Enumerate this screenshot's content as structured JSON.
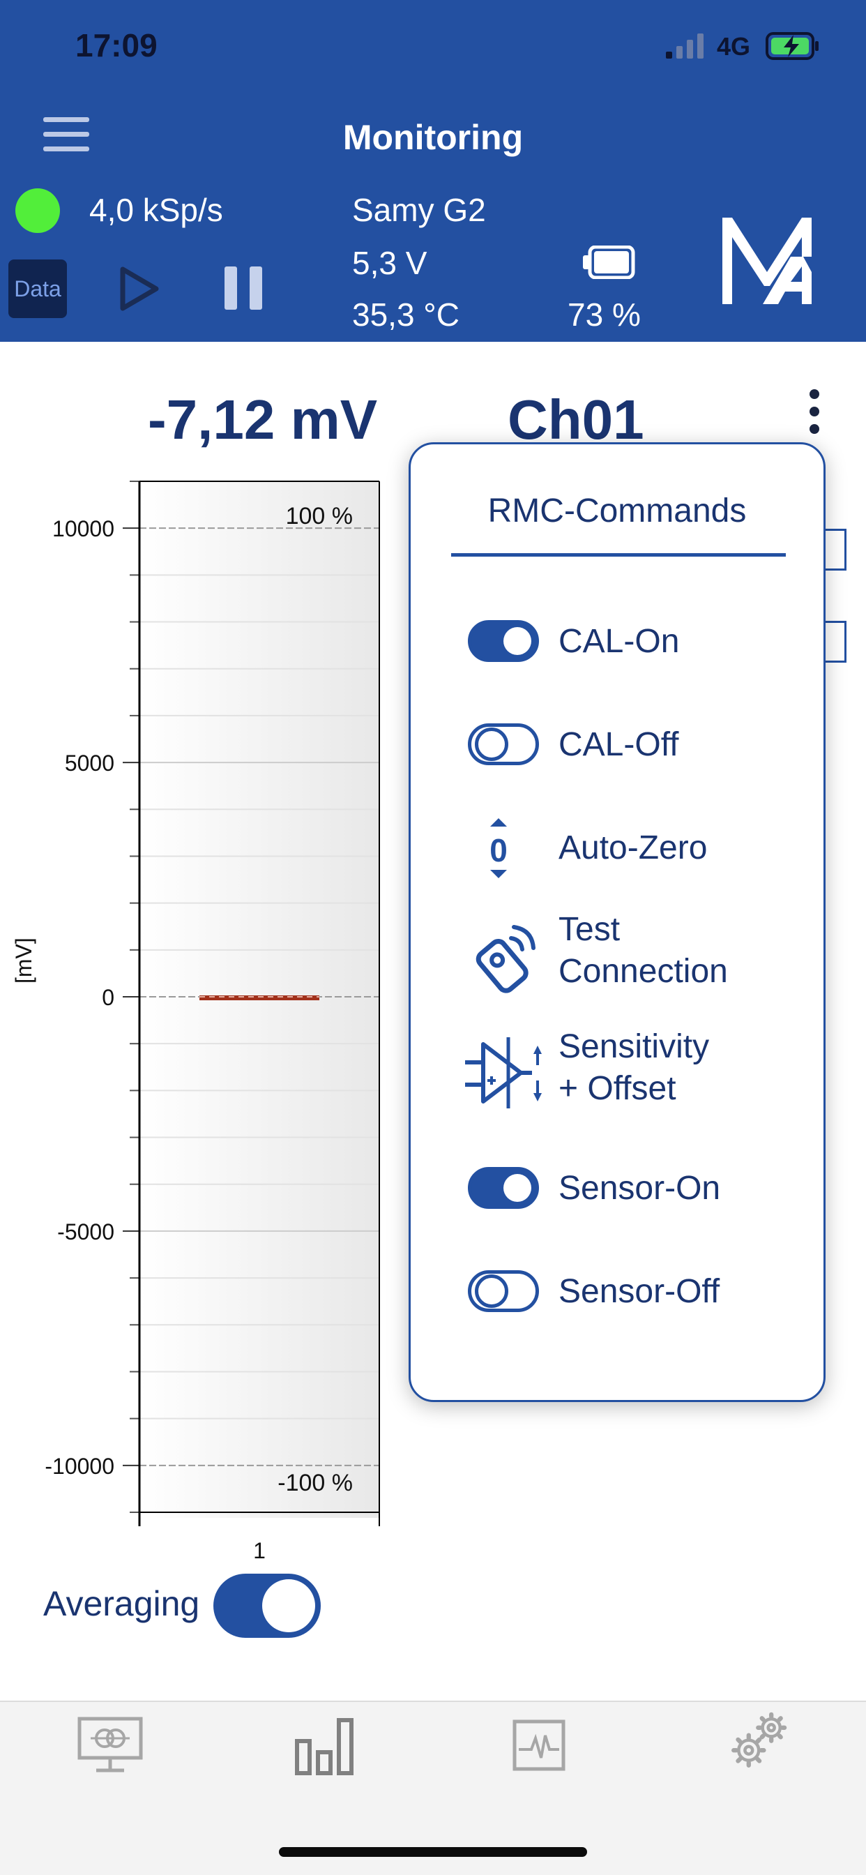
{
  "status_bar": {
    "time": "17:09",
    "network": "4G"
  },
  "header": {
    "title": "Monitoring",
    "sample_rate": "4,0 kSp/s",
    "data_button": "Data",
    "device_name": "Samy G2",
    "voltage": "5,3 V",
    "temperature": "35,3 °C",
    "battery": "73 %"
  },
  "reading": {
    "value": "-7,12 mV",
    "channel": "Ch01"
  },
  "chart_data": {
    "type": "bar",
    "categories": [
      "1"
    ],
    "values": [
      -7.12
    ],
    "ylabel": "[mV]",
    "ylim": [
      -11000,
      11000
    ],
    "yticks": [
      "10000",
      "5000",
      "0",
      "-5000",
      "-10000"
    ],
    "annotations": [
      "100 %",
      "-100 %"
    ],
    "bar_color": "#a1301a"
  },
  "averaging": {
    "label": "Averaging",
    "on": true
  },
  "rmc_menu": {
    "title": "RMC-Commands",
    "items": [
      {
        "label": "CAL-On",
        "icon": "toggle-on-icon"
      },
      {
        "label": "CAL-Off",
        "icon": "toggle-off-icon"
      },
      {
        "label": "Auto-Zero",
        "icon": "auto-zero-icon"
      },
      {
        "label": "Test",
        "label2": "Connection",
        "icon": "remote-connection-icon"
      },
      {
        "label": "Sensitivity",
        "label2": "+ Offset",
        "icon": "amplifier-icon"
      },
      {
        "label": "Sensor-On",
        "icon": "toggle-on-icon"
      },
      {
        "label": "Sensor-Off",
        "icon": "toggle-off-icon"
      }
    ]
  },
  "tabs": [
    "monitor-tab",
    "bar-chart-tab",
    "signal-tab",
    "settings-tab"
  ],
  "colors": {
    "brand": "#2350a1",
    "status_led": "#52ee3a",
    "text_dark": "#1a3470"
  }
}
